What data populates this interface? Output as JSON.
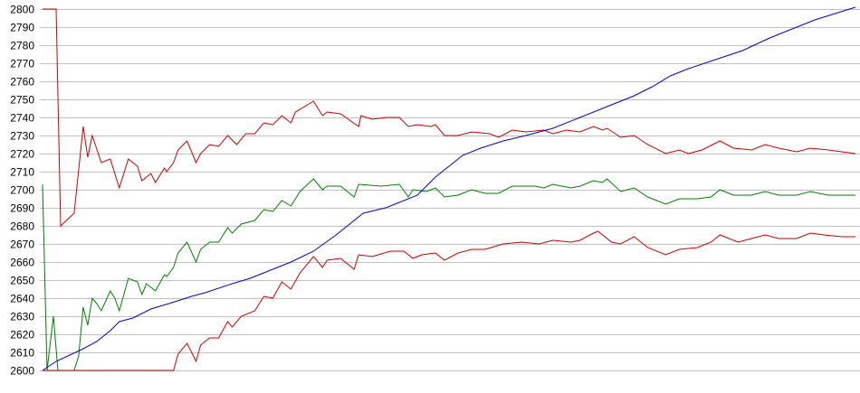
{
  "chart_data": {
    "type": "line",
    "title": "",
    "xlabel": "",
    "ylabel": "",
    "xlim": [
      0,
      180
    ],
    "ylim": [
      2600,
      2800
    ],
    "y_ticks": [
      "2600",
      "2610",
      "2620",
      "2630",
      "2640",
      "2650",
      "2660",
      "2670",
      "2680",
      "2690",
      "2700",
      "2710",
      "2720",
      "2730",
      "2740",
      "2750",
      "2760",
      "2770",
      "2780",
      "2790",
      "2800"
    ],
    "grid": "horizontal",
    "series": [
      {
        "color": "#d00000",
        "points": [
          [
            0,
            2800
          ],
          [
            3,
            2800
          ],
          [
            4,
            2680
          ],
          [
            7,
            2687
          ],
          [
            9,
            2735
          ],
          [
            10,
            2718
          ],
          [
            11,
            2730
          ],
          [
            13,
            2715
          ],
          [
            15,
            2717
          ],
          [
            17,
            2701
          ],
          [
            19,
            2717
          ],
          [
            21,
            2713
          ],
          [
            22,
            2705
          ],
          [
            24,
            2709
          ],
          [
            25,
            2704
          ],
          [
            27,
            2712
          ],
          [
            27.5,
            2710
          ],
          [
            29,
            2715
          ],
          [
            30,
            2722
          ],
          [
            32,
            2727
          ],
          [
            34,
            2715
          ],
          [
            35,
            2720
          ],
          [
            37,
            2725
          ],
          [
            39,
            2724
          ],
          [
            41,
            2730
          ],
          [
            43,
            2725
          ],
          [
            45,
            2731
          ],
          [
            47,
            2731
          ],
          [
            49,
            2737
          ],
          [
            51,
            2736
          ],
          [
            53,
            2741
          ],
          [
            55,
            2737
          ],
          [
            56,
            2743
          ],
          [
            60,
            2749
          ],
          [
            62,
            2741
          ],
          [
            63,
            2743
          ],
          [
            66,
            2742
          ],
          [
            70,
            2735
          ],
          [
            70.5,
            2741
          ],
          [
            73,
            2739
          ],
          [
            76,
            2740
          ],
          [
            79,
            2740
          ],
          [
            81,
            2735
          ],
          [
            83,
            2736
          ],
          [
            86,
            2735
          ],
          [
            87,
            2736
          ],
          [
            89,
            2730
          ],
          [
            92,
            2730
          ],
          [
            95,
            2732
          ],
          [
            99,
            2731
          ],
          [
            101,
            2729
          ],
          [
            104,
            2733
          ],
          [
            107,
            2732
          ],
          [
            111,
            2733
          ],
          [
            113,
            2731
          ],
          [
            116,
            2733
          ],
          [
            119,
            2732
          ],
          [
            122,
            2735
          ],
          [
            124,
            2733
          ],
          [
            125,
            2734
          ],
          [
            128,
            2729
          ],
          [
            131,
            2730
          ],
          [
            134,
            2725
          ],
          [
            138,
            2720
          ],
          [
            141,
            2722
          ],
          [
            143,
            2720
          ],
          [
            146,
            2722
          ],
          [
            150,
            2727
          ],
          [
            153,
            2723
          ],
          [
            157,
            2722
          ],
          [
            160,
            2725
          ],
          [
            163,
            2723
          ],
          [
            167,
            2721
          ],
          [
            170,
            2723
          ],
          [
            174,
            2722
          ],
          [
            177,
            2721
          ],
          [
            180,
            2720
          ]
        ]
      },
      {
        "color": "#008000",
        "points": [
          [
            0,
            2703
          ],
          [
            1,
            2600
          ],
          [
            2.4,
            2630
          ],
          [
            3.4,
            2600
          ],
          [
            7,
            2600
          ],
          [
            8,
            2608
          ],
          [
            9,
            2635
          ],
          [
            10,
            2625
          ],
          [
            11,
            2640
          ],
          [
            12,
            2637
          ],
          [
            13,
            2633
          ],
          [
            15,
            2644
          ],
          [
            16,
            2640
          ],
          [
            17,
            2633
          ],
          [
            19,
            2651
          ],
          [
            21,
            2649
          ],
          [
            22,
            2642
          ],
          [
            23,
            2648
          ],
          [
            25,
            2644
          ],
          [
            27,
            2653
          ],
          [
            27.5,
            2652
          ],
          [
            29,
            2657
          ],
          [
            30,
            2665
          ],
          [
            32,
            2671
          ],
          [
            34,
            2660
          ],
          [
            35,
            2667
          ],
          [
            37,
            2671
          ],
          [
            39,
            2671
          ],
          [
            41,
            2679
          ],
          [
            42,
            2676
          ],
          [
            44,
            2681
          ],
          [
            47,
            2683
          ],
          [
            49,
            2689
          ],
          [
            51,
            2688
          ],
          [
            53,
            2694
          ],
          [
            55,
            2691
          ],
          [
            57,
            2699
          ],
          [
            60,
            2706
          ],
          [
            62,
            2700
          ],
          [
            63,
            2702
          ],
          [
            66,
            2702
          ],
          [
            69,
            2696
          ],
          [
            70,
            2703
          ],
          [
            75,
            2702
          ],
          [
            79,
            2703
          ],
          [
            81,
            2696
          ],
          [
            82,
            2700
          ],
          [
            85,
            2699
          ],
          [
            87,
            2701
          ],
          [
            89,
            2696
          ],
          [
            92,
            2697
          ],
          [
            95,
            2700
          ],
          [
            98,
            2698
          ],
          [
            101,
            2698
          ],
          [
            104,
            2702
          ],
          [
            109,
            2702
          ],
          [
            111,
            2701
          ],
          [
            113,
            2703
          ],
          [
            117,
            2701
          ],
          [
            119,
            2702
          ],
          [
            122,
            2705
          ],
          [
            124,
            2704
          ],
          [
            125,
            2706
          ],
          [
            128,
            2699
          ],
          [
            131,
            2701
          ],
          [
            134,
            2696
          ],
          [
            138,
            2692
          ],
          [
            141,
            2695
          ],
          [
            145,
            2695
          ],
          [
            148,
            2696
          ],
          [
            150,
            2700
          ],
          [
            153,
            2697
          ],
          [
            157,
            2697
          ],
          [
            160,
            2699
          ],
          [
            163,
            2697
          ],
          [
            167,
            2697
          ],
          [
            170,
            2699
          ],
          [
            174,
            2697
          ],
          [
            180,
            2697
          ]
        ]
      },
      {
        "color": "#0000e0",
        "points": [
          [
            0,
            2600
          ],
          [
            3,
            2605
          ],
          [
            9,
            2612
          ],
          [
            12,
            2616
          ],
          [
            15,
            2622
          ],
          [
            17,
            2627
          ],
          [
            20,
            2629
          ],
          [
            24,
            2634
          ],
          [
            28,
            2637
          ],
          [
            33,
            2641
          ],
          [
            36,
            2643
          ],
          [
            42,
            2648
          ],
          [
            46,
            2651
          ],
          [
            51,
            2656
          ],
          [
            55,
            2660
          ],
          [
            60,
            2666
          ],
          [
            65,
            2675
          ],
          [
            71,
            2687
          ],
          [
            76,
            2690
          ],
          [
            83,
            2697
          ],
          [
            87,
            2707
          ],
          [
            93,
            2719
          ],
          [
            97,
            2723
          ],
          [
            102,
            2727
          ],
          [
            107,
            2730
          ],
          [
            113,
            2734
          ],
          [
            119,
            2740
          ],
          [
            125,
            2746
          ],
          [
            131,
            2752
          ],
          [
            135,
            2757
          ],
          [
            139,
            2763
          ],
          [
            143,
            2767
          ],
          [
            149,
            2772
          ],
          [
            155,
            2777
          ],
          [
            161,
            2784
          ],
          [
            166,
            2789
          ],
          [
            171,
            2794
          ],
          [
            180,
            2801
          ]
        ]
      },
      {
        "color": "#d00000",
        "points": [
          [
            0,
            2600
          ],
          [
            29,
            2600
          ],
          [
            30,
            2609
          ],
          [
            32,
            2615
          ],
          [
            34,
            2605
          ],
          [
            35,
            2614
          ],
          [
            37,
            2618
          ],
          [
            39,
            2618
          ],
          [
            41,
            2627
          ],
          [
            42,
            2624
          ],
          [
            44,
            2630
          ],
          [
            47,
            2633
          ],
          [
            49,
            2641
          ],
          [
            51,
            2640
          ],
          [
            53,
            2649
          ],
          [
            55,
            2645
          ],
          [
            57,
            2654
          ],
          [
            60,
            2663
          ],
          [
            62,
            2657
          ],
          [
            63,
            2661
          ],
          [
            66,
            2662
          ],
          [
            69,
            2656
          ],
          [
            70,
            2664
          ],
          [
            73,
            2663
          ],
          [
            77,
            2666
          ],
          [
            80,
            2666
          ],
          [
            82,
            2662
          ],
          [
            84,
            2664
          ],
          [
            87,
            2665
          ],
          [
            89,
            2661
          ],
          [
            92,
            2665
          ],
          [
            95,
            2667
          ],
          [
            98,
            2667
          ],
          [
            102,
            2670
          ],
          [
            106,
            2671
          ],
          [
            110,
            2670
          ],
          [
            113,
            2672
          ],
          [
            117,
            2671
          ],
          [
            119,
            2672
          ],
          [
            122,
            2676
          ],
          [
            123,
            2677
          ],
          [
            126,
            2671
          ],
          [
            128,
            2670
          ],
          [
            131,
            2674
          ],
          [
            134,
            2668
          ],
          [
            138,
            2664
          ],
          [
            141,
            2667
          ],
          [
            145,
            2668
          ],
          [
            148,
            2671
          ],
          [
            150,
            2675
          ],
          [
            154,
            2671
          ],
          [
            157,
            2673
          ],
          [
            160,
            2675
          ],
          [
            163,
            2673
          ],
          [
            167,
            2673
          ],
          [
            170,
            2676
          ],
          [
            173,
            2675
          ],
          [
            177,
            2674
          ],
          [
            180,
            2674
          ]
        ]
      }
    ]
  }
}
